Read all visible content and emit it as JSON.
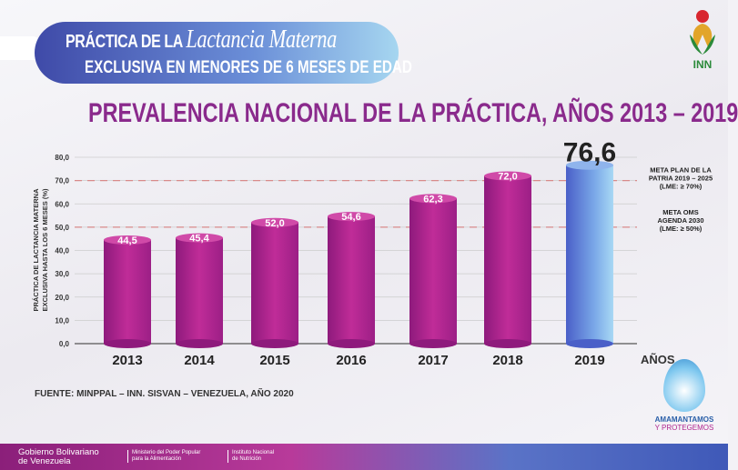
{
  "header": {
    "line1_prefix": "PRÁCTICA DE LA",
    "line1_script": "Lactancia Materna",
    "line2": "EXCLUSIVA EN MENORES DE 6 MESES DE EDAD"
  },
  "logo": {
    "text": "INN"
  },
  "chart_data": {
    "type": "bar",
    "title": "PREVALENCIA NACIONAL DE LA PRÁCTICA, AÑOS 2013 – 2019",
    "ylabel_lines": [
      "PRÁCTICA DE LACTANCIA MATERNA",
      "EXCLUSIVA HASTA LOS 6 MESES (%)"
    ],
    "xlabel": "AÑOS",
    "categories": [
      "2013",
      "2014",
      "2015",
      "2016",
      "2017",
      "2018",
      "2019"
    ],
    "values": [
      44.5,
      45.4,
      52.0,
      54.6,
      62.3,
      72.0,
      76.6
    ],
    "data_labels": [
      "44,5",
      "45,4",
      "52,0",
      "54,6",
      "62,3",
      "72,0",
      "76,6"
    ],
    "ylim": [
      0,
      80
    ],
    "yticks": [
      "0,0",
      "10,0",
      "20,0",
      "30,0",
      "40,0",
      "50,0",
      "60,0",
      "70,0",
      "80,0"
    ],
    "grid": true,
    "colors": {
      "bar": "#b0268f",
      "highlight": "#6f9be0",
      "reference": "#d88a8a"
    },
    "reference_lines": [
      {
        "value": 70,
        "label_lines": [
          "META PLAN DE LA",
          "PATRIA 2019 – 2025",
          "(LME: ≥ 70%)"
        ]
      },
      {
        "value": 50,
        "label_lines": [
          "META OMS",
          "AGENDA 2030",
          "(LME: ≥ 50%)"
        ]
      }
    ]
  },
  "source": "FUENTE: MINPPAL – INN. SISVAN – VENEZUELA, AÑO 2020",
  "campaign": {
    "line1": "AMAMANTAMOS",
    "line2": "Y PROTEGEMOS"
  },
  "footer": {
    "gov1": "Gobierno Bolivariano",
    "gov2": "de Venezuela",
    "min1": "Ministerio del Poder Popular",
    "min2": "para la Alimentación",
    "inst1": "Instituto Nacional",
    "inst2": "de Nutrición"
  }
}
